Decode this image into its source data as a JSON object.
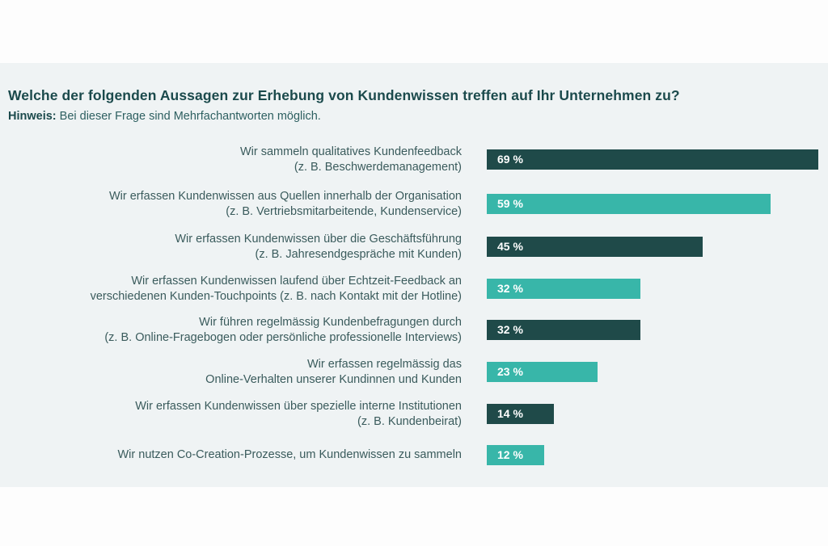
{
  "header": {
    "title": "Welche der folgenden Aussagen zur Erhebung von Kundenwissen treffen auf Ihr Unternehmen zu?",
    "note_label": "Hinweis:",
    "note_text": " Bei dieser Frage sind Mehrfachantworten möglich."
  },
  "colors": {
    "dark": "#1f4a49",
    "light": "#38b6a9",
    "background": "#eff3f4",
    "text": "#3a5b5c"
  },
  "chart_data": {
    "type": "bar",
    "orientation": "horizontal",
    "title": "Welche der folgenden Aussagen zur Erhebung von Kundenwissen treffen auf Ihr Unternehmen zu?",
    "subtitle": "Hinweis: Bei dieser Frage sind Mehrfachantworten möglich.",
    "xlabel": "",
    "ylabel": "",
    "unit": "%",
    "xlim": [
      0,
      69
    ],
    "grid": false,
    "legend": "none",
    "categories": [
      [
        "Wir sammeln qualitatives Kundenfeedback",
        "(z. B. Beschwerdemanagement)"
      ],
      [
        "Wir erfassen Kundenwissen aus Quellen innerhalb der Organisation",
        "(z. B. Vertriebsmitarbeitende, Kundenservice)"
      ],
      [
        "Wir erfassen Kundenwissen über die Geschäftsführung",
        "(z. B. Jahresendgespräche mit Kunden)"
      ],
      [
        "Wir erfassen Kundenwissen laufend über Echtzeit-Feedback an",
        "verschiedenen Kunden-Touchpoints (z. B. nach Kontakt mit der Hotline)"
      ],
      [
        "Wir führen regelmässig Kundenbefragungen durch",
        "(z. B. Online-Fragebogen oder persönliche professionelle Interviews)"
      ],
      [
        "Wir erfassen regelmässig das",
        "Online-Verhalten unserer Kundinnen und Kunden"
      ],
      [
        "Wir erfassen Kundenwissen über spezielle interne Institutionen",
        "(z. B. Kundenbeirat)"
      ],
      [
        "Wir nutzen Co-Creation-Prozesse, um Kundenwissen zu sammeln"
      ]
    ],
    "values": [
      69,
      59,
      45,
      32,
      32,
      23,
      14,
      12
    ],
    "data_labels": [
      "69 %",
      "59 %",
      "45 %",
      "32 %",
      "32 %",
      "23 %",
      "14 %",
      "12 %"
    ],
    "bar_colors": [
      "dark",
      "light",
      "dark",
      "light",
      "dark",
      "light",
      "dark",
      "light"
    ]
  }
}
